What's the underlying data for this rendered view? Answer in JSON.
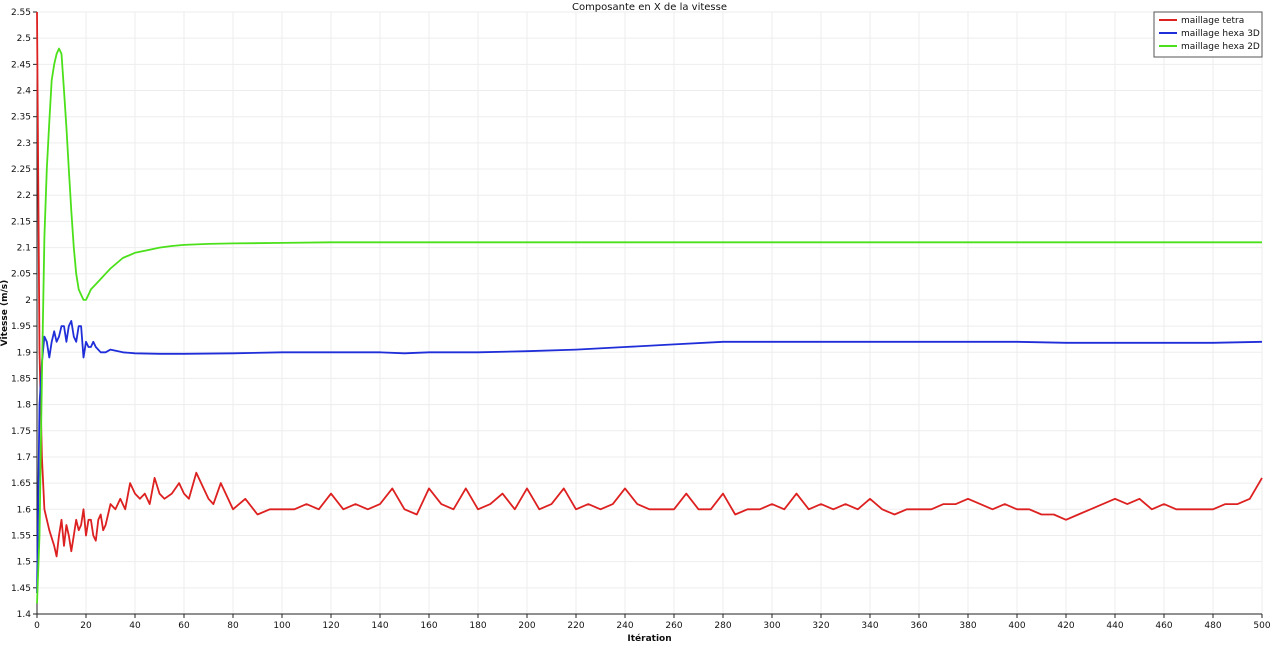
{
  "chart_data": {
    "type": "line",
    "title": "Composante en X de la vitesse",
    "xlabel": "Itération",
    "ylabel": "Vitesse (m/s)",
    "xlim": [
      0,
      500
    ],
    "ylim": [
      1.4,
      2.55
    ],
    "grid": true,
    "legend_position": "top-right",
    "x_ticks": [
      0,
      20,
      40,
      60,
      80,
      100,
      120,
      140,
      160,
      180,
      200,
      220,
      240,
      260,
      280,
      300,
      320,
      340,
      360,
      380,
      400,
      420,
      440,
      460,
      480,
      500
    ],
    "y_ticks": [
      1.4,
      1.45,
      1.5,
      1.55,
      1.6,
      1.65,
      1.7,
      1.75,
      1.8,
      1.85,
      1.9,
      1.95,
      2,
      2.05,
      2.1,
      2.15,
      2.2,
      2.25,
      2.3,
      2.35,
      2.4,
      2.45,
      2.5,
      2.55
    ],
    "y_tick_labels": [
      "1.4",
      "1.45",
      "1.5",
      "1.55",
      "1.6",
      "1.65",
      "1.7",
      "1.75",
      "1.8",
      "1.85",
      "1.9",
      "1.95",
      "2",
      "2.05",
      "2.1",
      "2.15",
      "2.2",
      "2.25",
      "2.3",
      "2.35",
      "2.4",
      "2.45",
      "2.5",
      "2.55"
    ],
    "series": [
      {
        "name": "maillage tetra",
        "color": "#dd2020",
        "x": [
          0,
          1,
          2,
          3,
          5,
          7,
          8,
          9,
          10,
          11,
          12,
          13,
          14,
          15,
          16,
          17,
          18,
          19,
          20,
          21,
          22,
          23,
          24,
          25,
          26,
          27,
          28,
          30,
          32,
          34,
          36,
          38,
          40,
          42,
          44,
          46,
          48,
          50,
          52,
          55,
          58,
          60,
          62,
          65,
          68,
          70,
          72,
          75,
          78,
          80,
          85,
          90,
          95,
          100,
          105,
          110,
          115,
          120,
          125,
          130,
          135,
          140,
          145,
          150,
          155,
          160,
          165,
          170,
          175,
          180,
          185,
          190,
          195,
          200,
          205,
          210,
          215,
          220,
          225,
          230,
          235,
          240,
          245,
          250,
          255,
          260,
          265,
          270,
          275,
          280,
          285,
          290,
          295,
          300,
          305,
          310,
          315,
          320,
          325,
          330,
          335,
          340,
          345,
          350,
          355,
          360,
          365,
          370,
          375,
          380,
          385,
          390,
          395,
          400,
          405,
          410,
          415,
          420,
          425,
          430,
          435,
          440,
          445,
          450,
          455,
          460,
          465,
          470,
          475,
          480,
          485,
          490,
          495,
          500
        ],
        "y": [
          2.55,
          1.9,
          1.7,
          1.6,
          1.56,
          1.53,
          1.51,
          1.55,
          1.58,
          1.53,
          1.57,
          1.55,
          1.52,
          1.55,
          1.58,
          1.56,
          1.57,
          1.6,
          1.55,
          1.58,
          1.58,
          1.55,
          1.54,
          1.58,
          1.59,
          1.56,
          1.57,
          1.61,
          1.6,
          1.62,
          1.6,
          1.65,
          1.63,
          1.62,
          1.63,
          1.61,
          1.66,
          1.63,
          1.62,
          1.63,
          1.65,
          1.63,
          1.62,
          1.67,
          1.64,
          1.62,
          1.61,
          1.65,
          1.62,
          1.6,
          1.62,
          1.59,
          1.6,
          1.6,
          1.6,
          1.61,
          1.6,
          1.63,
          1.6,
          1.61,
          1.6,
          1.61,
          1.64,
          1.6,
          1.59,
          1.64,
          1.61,
          1.6,
          1.64,
          1.6,
          1.61,
          1.63,
          1.6,
          1.64,
          1.6,
          1.61,
          1.64,
          1.6,
          1.61,
          1.6,
          1.61,
          1.64,
          1.61,
          1.6,
          1.6,
          1.6,
          1.63,
          1.6,
          1.6,
          1.63,
          1.59,
          1.6,
          1.6,
          1.61,
          1.6,
          1.63,
          1.6,
          1.61,
          1.6,
          1.61,
          1.6,
          1.62,
          1.6,
          1.59,
          1.6,
          1.6,
          1.6,
          1.61,
          1.61,
          1.62,
          1.61,
          1.6,
          1.61,
          1.6,
          1.6,
          1.59,
          1.59,
          1.58,
          1.59,
          1.6,
          1.61,
          1.62,
          1.61,
          1.62,
          1.6,
          1.61,
          1.6,
          1.6,
          1.6,
          1.6,
          1.61,
          1.61,
          1.62,
          1.66
        ]
      },
      {
        "name": "maillage hexa 3D",
        "color": "#1f2ed8",
        "x": [
          0,
          1,
          2,
          3,
          4,
          5,
          6,
          7,
          8,
          9,
          10,
          11,
          12,
          13,
          14,
          15,
          16,
          17,
          18,
          19,
          20,
          21,
          22,
          23,
          24,
          26,
          28,
          30,
          35,
          40,
          50,
          60,
          80,
          100,
          120,
          140,
          150,
          160,
          180,
          200,
          220,
          240,
          260,
          280,
          300,
          320,
          340,
          360,
          380,
          400,
          420,
          440,
          460,
          480,
          500
        ],
        "y": [
          1.44,
          1.8,
          1.88,
          1.93,
          1.92,
          1.89,
          1.92,
          1.94,
          1.92,
          1.93,
          1.95,
          1.95,
          1.92,
          1.95,
          1.96,
          1.93,
          1.92,
          1.95,
          1.95,
          1.89,
          1.92,
          1.91,
          1.91,
          1.92,
          1.91,
          1.9,
          1.9,
          1.905,
          1.9,
          1.898,
          1.897,
          1.897,
          1.898,
          1.9,
          1.9,
          1.9,
          1.898,
          1.9,
          1.9,
          1.902,
          1.905,
          1.91,
          1.915,
          1.92,
          1.92,
          1.92,
          1.92,
          1.92,
          1.92,
          1.92,
          1.918,
          1.918,
          1.918,
          1.918,
          1.92
        ]
      },
      {
        "name": "maillage hexa 2D",
        "color": "#4be01a",
        "x": [
          0,
          1,
          2,
          3,
          4,
          5,
          6,
          7,
          8,
          9,
          10,
          11,
          12,
          13,
          14,
          15,
          16,
          17,
          18,
          19,
          20,
          21,
          22,
          24,
          26,
          28,
          30,
          35,
          40,
          45,
          50,
          55,
          60,
          70,
          80,
          100,
          120,
          150,
          200,
          250,
          300,
          350,
          400,
          450,
          500
        ],
        "y": [
          1.42,
          1.55,
          1.85,
          2.12,
          2.25,
          2.34,
          2.42,
          2.45,
          2.47,
          2.48,
          2.47,
          2.4,
          2.33,
          2.25,
          2.17,
          2.1,
          2.05,
          2.02,
          2.01,
          2.0,
          2.0,
          2.01,
          2.02,
          2.03,
          2.04,
          2.05,
          2.06,
          2.08,
          2.09,
          2.095,
          2.1,
          2.103,
          2.105,
          2.107,
          2.108,
          2.109,
          2.11,
          2.11,
          2.11,
          2.11,
          2.11,
          2.11,
          2.11,
          2.11,
          2.11
        ]
      }
    ]
  }
}
